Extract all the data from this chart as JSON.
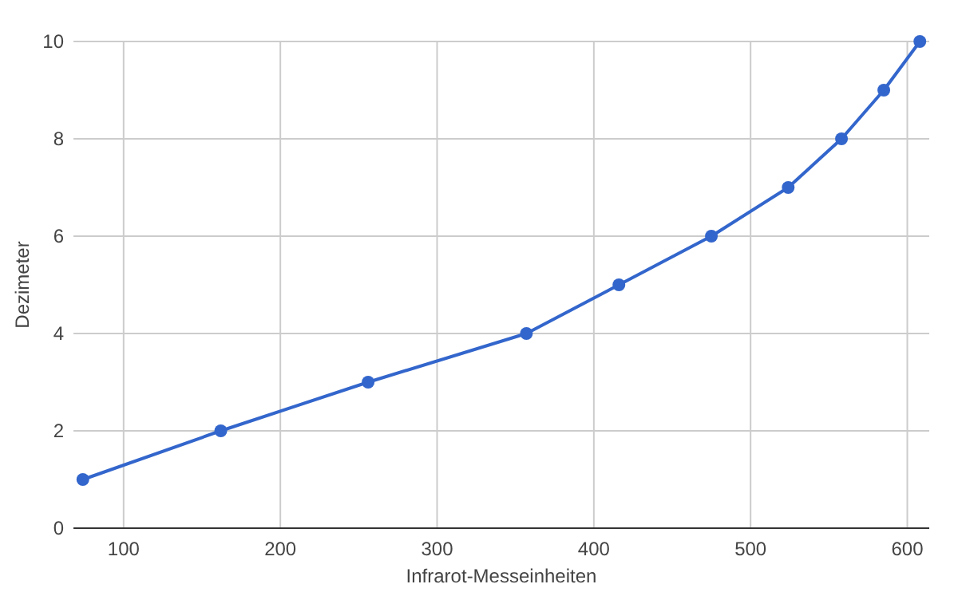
{
  "chart_data": {
    "type": "line",
    "xlabel": "Infrarot-Messeinheiten",
    "ylabel": "Dezimeter",
    "x": [
      74,
      162,
      256,
      357,
      416,
      475,
      524,
      558,
      585,
      608
    ],
    "series": [
      {
        "color": "#3366cc",
        "values": [
          1,
          2,
          3,
          4,
          5,
          6,
          7,
          8,
          9,
          10
        ]
      }
    ],
    "xlim": [
      68,
      614
    ],
    "xticks": [
      100,
      200,
      300,
      400,
      500,
      600
    ],
    "ylim": [
      0,
      10
    ],
    "yticks": [
      0,
      2,
      4,
      6,
      8,
      10
    ],
    "grid": true,
    "marker": "circle",
    "line_style": "solid"
  }
}
